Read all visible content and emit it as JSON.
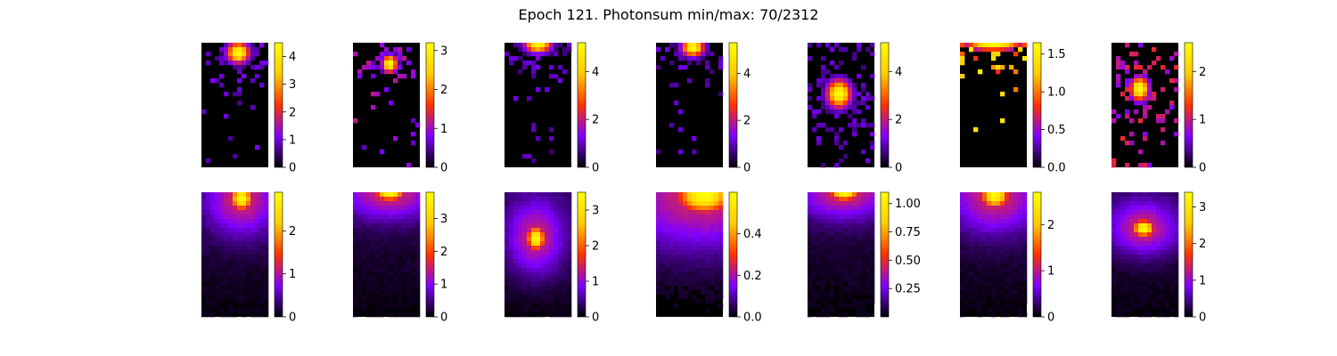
{
  "title": "Epoch 121. Photonsum min/max: 70/2312",
  "colormap": [
    "#000000",
    "#7f00ff",
    "#ff3300",
    "#ffcc00",
    "#ffff00"
  ],
  "chart_data": {
    "type": "heatmap",
    "grid": "2 rows x 7 columns",
    "rows": [
      {
        "panels": [
          {
            "vmin": 0,
            "vmax": 4.5,
            "colorbar_ticks": [
              "0",
              "1",
              "2",
              "3",
              "4"
            ],
            "tick_values": [
              0,
              1,
              2,
              3,
              4
            ],
            "blob": {
              "cx": 0.55,
              "cy": 0.08,
              "sx": 0.12,
              "sy": 0.06,
              "peak": 4.5
            },
            "sparse": true
          },
          {
            "vmin": 0,
            "vmax": 3.2,
            "colorbar_ticks": [
              "0",
              "1",
              "2",
              "3"
            ],
            "tick_values": [
              0,
              1,
              2,
              3
            ],
            "blob": {
              "cx": 0.55,
              "cy": 0.17,
              "sx": 0.08,
              "sy": 0.05,
              "peak": 3.2
            },
            "sparse": true
          },
          {
            "vmin": 0,
            "vmax": 5.2,
            "colorbar_ticks": [
              "0",
              "2",
              "4"
            ],
            "tick_values": [
              0,
              2,
              4
            ],
            "blob": {
              "cx": 0.5,
              "cy": 0.01,
              "sx": 0.14,
              "sy": 0.05,
              "peak": 5.2
            },
            "sparse": true
          },
          {
            "vmin": 0,
            "vmax": 5.3,
            "colorbar_ticks": [
              "0",
              "2",
              "4"
            ],
            "tick_values": [
              0,
              2,
              4
            ],
            "blob": {
              "cx": 0.55,
              "cy": 0.04,
              "sx": 0.12,
              "sy": 0.05,
              "peak": 5.3
            },
            "sparse": true
          },
          {
            "vmin": 0,
            "vmax": 5.2,
            "colorbar_ticks": [
              "0",
              "2",
              "4"
            ],
            "tick_values": [
              0,
              2,
              4
            ],
            "blob": {
              "cx": 0.47,
              "cy": 0.41,
              "sx": 0.13,
              "sy": 0.08,
              "peak": 5.2
            },
            "sparse": true
          },
          {
            "vmin": 0,
            "vmax": 1.65,
            "colorbar_ticks": [
              "0.0",
              "0.5",
              "1.0",
              "1.5"
            ],
            "tick_values": [
              0,
              0.5,
              1.0,
              1.5
            ],
            "blob": {
              "cx": 0.5,
              "cy": 0.02,
              "sx": 0.3,
              "sy": 0.03,
              "peak": 1.6
            },
            "sparse": true
          },
          {
            "vmin": 0,
            "vmax": 2.6,
            "colorbar_ticks": [
              "0",
              "1",
              "2"
            ],
            "tick_values": [
              0,
              1,
              2
            ],
            "blob": {
              "cx": 0.42,
              "cy": 0.37,
              "sx": 0.1,
              "sy": 0.07,
              "peak": 2.6
            },
            "sparse": true
          }
        ]
      },
      {
        "panels": [
          {
            "vmin": 0,
            "vmax": 2.9,
            "colorbar_ticks": [
              "0",
              "1",
              "2"
            ],
            "tick_values": [
              0,
              1,
              2
            ],
            "blob": {
              "cx": 0.6,
              "cy": 0.05,
              "sx": 0.12,
              "sy": 0.07,
              "peak": 2.9
            },
            "sparse": false
          },
          {
            "vmin": 0,
            "vmax": 3.8,
            "colorbar_ticks": [
              "0",
              "1",
              "2",
              "3"
            ],
            "tick_values": [
              0,
              1,
              2,
              3
            ],
            "blob": {
              "cx": 0.55,
              "cy": 0.0,
              "sx": 0.16,
              "sy": 0.05,
              "peak": 3.8
            },
            "sparse": false
          },
          {
            "vmin": 0,
            "vmax": 3.5,
            "colorbar_ticks": [
              "0",
              "1",
              "2",
              "3"
            ],
            "tick_values": [
              0,
              1,
              2,
              3
            ],
            "blob": {
              "cx": 0.47,
              "cy": 0.37,
              "sx": 0.1,
              "sy": 0.07,
              "peak": 3.5
            },
            "sparse": false
          },
          {
            "vmin": 0,
            "vmax": 0.6,
            "colorbar_ticks": [
              "0.0",
              "0.2",
              "0.4"
            ],
            "tick_values": [
              0,
              0.2,
              0.4
            ],
            "blob": {
              "cx": 0.72,
              "cy": 0.03,
              "sx": 0.3,
              "sy": 0.1,
              "peak": 0.6
            },
            "sparse": false
          },
          {
            "vmin": 0,
            "vmax": 1.1,
            "colorbar_ticks": [
              "0.25",
              "0.50",
              "0.75",
              "1.00"
            ],
            "tick_values": [
              0.25,
              0.5,
              0.75,
              1.0
            ],
            "blob": {
              "cx": 0.55,
              "cy": 0.0,
              "sx": 0.16,
              "sy": 0.05,
              "peak": 1.1
            },
            "sparse": false
          },
          {
            "vmin": 0,
            "vmax": 2.7,
            "colorbar_ticks": [
              "0",
              "1",
              "2"
            ],
            "tick_values": [
              0,
              1,
              2
            ],
            "blob": {
              "cx": 0.52,
              "cy": 0.03,
              "sx": 0.15,
              "sy": 0.07,
              "peak": 2.7
            },
            "sparse": false
          },
          {
            "vmin": 0,
            "vmax": 3.4,
            "colorbar_ticks": [
              "0",
              "1",
              "2",
              "3"
            ],
            "tick_values": [
              0,
              1,
              2,
              3
            ],
            "blob": {
              "cx": 0.48,
              "cy": 0.29,
              "sx": 0.12,
              "sy": 0.05,
              "peak": 3.4
            },
            "sparse": false
          }
        ]
      }
    ]
  }
}
